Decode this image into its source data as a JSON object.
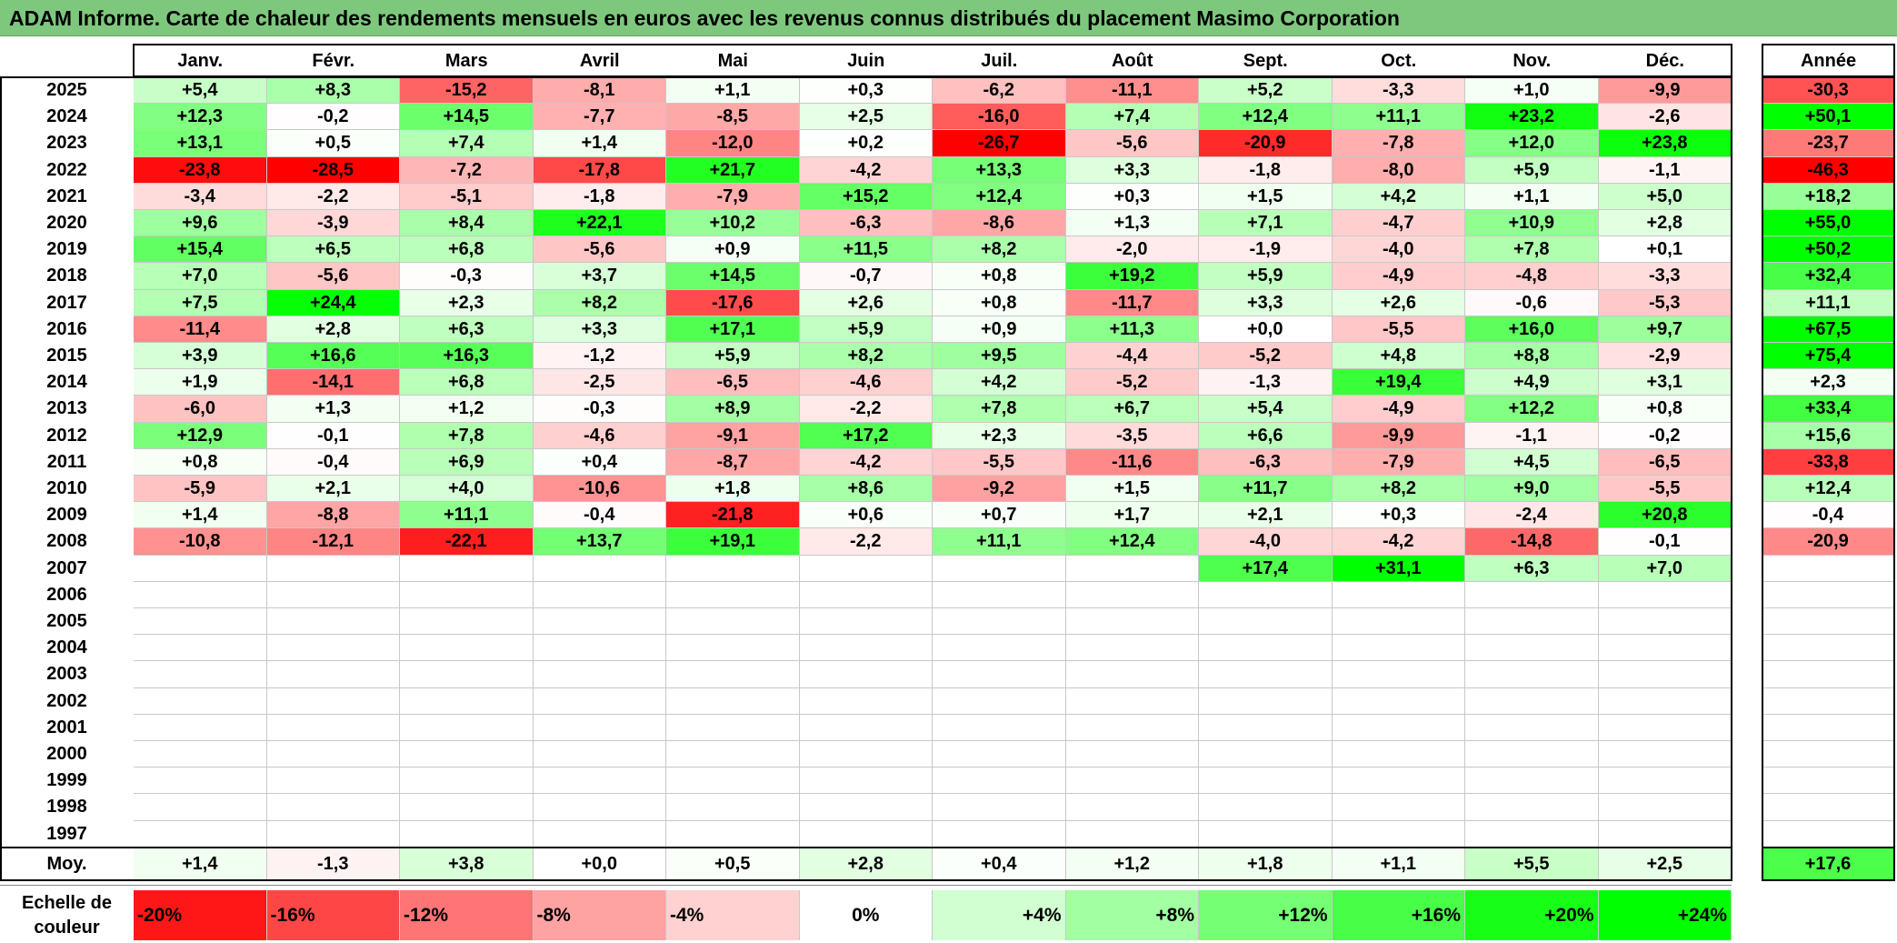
{
  "title": "ADAM Informe. Carte de chaleur des rendements mensuels en euros avec les revenus connus distribués du placement Masimo Corporation",
  "chart_data": {
    "type": "heatmap",
    "months": [
      "Janv.",
      "Févr.",
      "Mars",
      "Avril",
      "Mai",
      "Juin",
      "Juil.",
      "Août",
      "Sept.",
      "Oct.",
      "Nov.",
      "Déc."
    ],
    "year_header": "Année",
    "rows": [
      {
        "year": "2025",
        "values": [
          "+5,4",
          "+8,3",
          "-15,2",
          "-8,1",
          "+1,1",
          "+0,3",
          "-6,2",
          "-11,1",
          "+5,2",
          "-3,3",
          "+1,0",
          "-9,9"
        ],
        "annual": "-30,3"
      },
      {
        "year": "2024",
        "values": [
          "+12,3",
          "-0,2",
          "+14,5",
          "-7,7",
          "-8,5",
          "+2,5",
          "-16,0",
          "+7,4",
          "+12,4",
          "+11,1",
          "+23,2",
          "-2,6"
        ],
        "annual": "+50,1"
      },
      {
        "year": "2023",
        "values": [
          "+13,1",
          "+0,5",
          "+7,4",
          "+1,4",
          "-12,0",
          "+0,2",
          "-26,7",
          "-5,6",
          "-20,9",
          "-7,8",
          "+12,0",
          "+23,8"
        ],
        "annual": "-23,7"
      },
      {
        "year": "2022",
        "values": [
          "-23,8",
          "-28,5",
          "-7,2",
          "-17,8",
          "+21,7",
          "-4,2",
          "+13,3",
          "+3,3",
          "-1,8",
          "-8,0",
          "+5,9",
          "-1,1"
        ],
        "annual": "-46,3"
      },
      {
        "year": "2021",
        "values": [
          "-3,4",
          "-2,2",
          "-5,1",
          "-1,8",
          "-7,9",
          "+15,2",
          "+12,4",
          "+0,3",
          "+1,5",
          "+4,2",
          "+1,1",
          "+5,0"
        ],
        "annual": "+18,2"
      },
      {
        "year": "2020",
        "values": [
          "+9,6",
          "-3,9",
          "+8,4",
          "+22,1",
          "+10,2",
          "-6,3",
          "-8,6",
          "+1,3",
          "+7,1",
          "-4,7",
          "+10,9",
          "+2,8"
        ],
        "annual": "+55,0"
      },
      {
        "year": "2019",
        "values": [
          "+15,4",
          "+6,5",
          "+6,8",
          "-5,6",
          "+0,9",
          "+11,5",
          "+8,2",
          "-2,0",
          "-1,9",
          "-4,0",
          "+7,8",
          "+0,1"
        ],
        "annual": "+50,2"
      },
      {
        "year": "2018",
        "values": [
          "+7,0",
          "-5,6",
          "-0,3",
          "+3,7",
          "+14,5",
          "-0,7",
          "+0,8",
          "+19,2",
          "+5,9",
          "-4,9",
          "-4,8",
          "-3,3"
        ],
        "annual": "+32,4"
      },
      {
        "year": "2017",
        "values": [
          "+7,5",
          "+24,4",
          "+2,3",
          "+8,2",
          "-17,6",
          "+2,6",
          "+0,8",
          "-11,7",
          "+3,3",
          "+2,6",
          "-0,6",
          "-5,3"
        ],
        "annual": "+11,1"
      },
      {
        "year": "2016",
        "values": [
          "-11,4",
          "+2,8",
          "+6,3",
          "+3,3",
          "+17,1",
          "+5,9",
          "+0,9",
          "+11,3",
          "+0,0",
          "-5,5",
          "+16,0",
          "+9,7"
        ],
        "annual": "+67,5"
      },
      {
        "year": "2015",
        "values": [
          "+3,9",
          "+16,6",
          "+16,3",
          "-1,2",
          "+5,9",
          "+8,2",
          "+9,5",
          "-4,4",
          "-5,2",
          "+4,8",
          "+8,8",
          "-2,9"
        ],
        "annual": "+75,4"
      },
      {
        "year": "2014",
        "values": [
          "+1,9",
          "-14,1",
          "+6,8",
          "-2,5",
          "-6,5",
          "-4,6",
          "+4,2",
          "-5,2",
          "-1,3",
          "+19,4",
          "+4,9",
          "+3,1"
        ],
        "annual": "+2,3"
      },
      {
        "year": "2013",
        "values": [
          "-6,0",
          "+1,3",
          "+1,2",
          "-0,3",
          "+8,9",
          "-2,2",
          "+7,8",
          "+6,7",
          "+5,4",
          "-4,9",
          "+12,2",
          "+0,8"
        ],
        "annual": "+33,4"
      },
      {
        "year": "2012",
        "values": [
          "+12,9",
          "-0,1",
          "+7,8",
          "-4,6",
          "-9,1",
          "+17,2",
          "+2,3",
          "-3,5",
          "+6,6",
          "-9,9",
          "-1,1",
          "-0,2"
        ],
        "annual": "+15,6"
      },
      {
        "year": "2011",
        "values": [
          "+0,8",
          "-0,4",
          "+6,9",
          "+0,4",
          "-8,7",
          "-4,2",
          "-5,5",
          "-11,6",
          "-6,3",
          "-7,9",
          "+4,5",
          "-6,5"
        ],
        "annual": "-33,8"
      },
      {
        "year": "2010",
        "values": [
          "-5,9",
          "+2,1",
          "+4,0",
          "-10,6",
          "+1,8",
          "+8,6",
          "-9,2",
          "+1,5",
          "+11,7",
          "+8,2",
          "+9,0",
          "-5,5"
        ],
        "annual": "+12,4"
      },
      {
        "year": "2009",
        "values": [
          "+1,4",
          "-8,8",
          "+11,1",
          "-0,4",
          "-21,8",
          "+0,6",
          "+0,7",
          "+1,7",
          "+2,1",
          "+0,3",
          "-2,4",
          "+20,8"
        ],
        "annual": "-0,4"
      },
      {
        "year": "2008",
        "values": [
          "-10,8",
          "-12,1",
          "-22,1",
          "+13,7",
          "+19,1",
          "-2,2",
          "+11,1",
          "+12,4",
          "-4,0",
          "-4,2",
          "-14,8",
          "-0,1"
        ],
        "annual": "-20,9"
      },
      {
        "year": "2007",
        "values": [
          "",
          "",
          "",
          "",
          "",
          "",
          "",
          "",
          "+17,4",
          "+31,1",
          "+6,3",
          "+7,0"
        ],
        "annual": ""
      },
      {
        "year": "2006",
        "values": [
          "",
          "",
          "",
          "",
          "",
          "",
          "",
          "",
          "",
          "",
          "",
          ""
        ],
        "annual": ""
      },
      {
        "year": "2005",
        "values": [
          "",
          "",
          "",
          "",
          "",
          "",
          "",
          "",
          "",
          "",
          "",
          ""
        ],
        "annual": ""
      },
      {
        "year": "2004",
        "values": [
          "",
          "",
          "",
          "",
          "",
          "",
          "",
          "",
          "",
          "",
          "",
          ""
        ],
        "annual": ""
      },
      {
        "year": "2003",
        "values": [
          "",
          "",
          "",
          "",
          "",
          "",
          "",
          "",
          "",
          "",
          "",
          ""
        ],
        "annual": ""
      },
      {
        "year": "2002",
        "values": [
          "",
          "",
          "",
          "",
          "",
          "",
          "",
          "",
          "",
          "",
          "",
          ""
        ],
        "annual": ""
      },
      {
        "year": "2001",
        "values": [
          "",
          "",
          "",
          "",
          "",
          "",
          "",
          "",
          "",
          "",
          "",
          ""
        ],
        "annual": ""
      },
      {
        "year": "2000",
        "values": [
          "",
          "",
          "",
          "",
          "",
          "",
          "",
          "",
          "",
          "",
          "",
          ""
        ],
        "annual": ""
      },
      {
        "year": "1999",
        "values": [
          "",
          "",
          "",
          "",
          "",
          "",
          "",
          "",
          "",
          "",
          "",
          ""
        ],
        "annual": ""
      },
      {
        "year": "1998",
        "values": [
          "",
          "",
          "",
          "",
          "",
          "",
          "",
          "",
          "",
          "",
          "",
          ""
        ],
        "annual": ""
      },
      {
        "year": "1997",
        "values": [
          "",
          "",
          "",
          "",
          "",
          "",
          "",
          "",
          "",
          "",
          "",
          ""
        ],
        "annual": ""
      }
    ],
    "average": {
      "label": "Moy.",
      "values": [
        "+1,4",
        "-1,3",
        "+3,8",
        "+0,0",
        "+0,5",
        "+2,8",
        "+0,4",
        "+1,2",
        "+1,8",
        "+1,1",
        "+5,5",
        "+2,5"
      ],
      "annual": "+17,6"
    },
    "color_scale": {
      "label": "Echelle de couleur",
      "stops": [
        "-20%",
        "-16%",
        "-12%",
        "-8%",
        "-4%",
        "0%",
        "+4%",
        "+8%",
        "+12%",
        "+16%",
        "+20%",
        "+24%"
      ],
      "negative_color": "#ff0000",
      "neutral_color": "#ffffff",
      "positive_color": "#00ff00"
    }
  }
}
